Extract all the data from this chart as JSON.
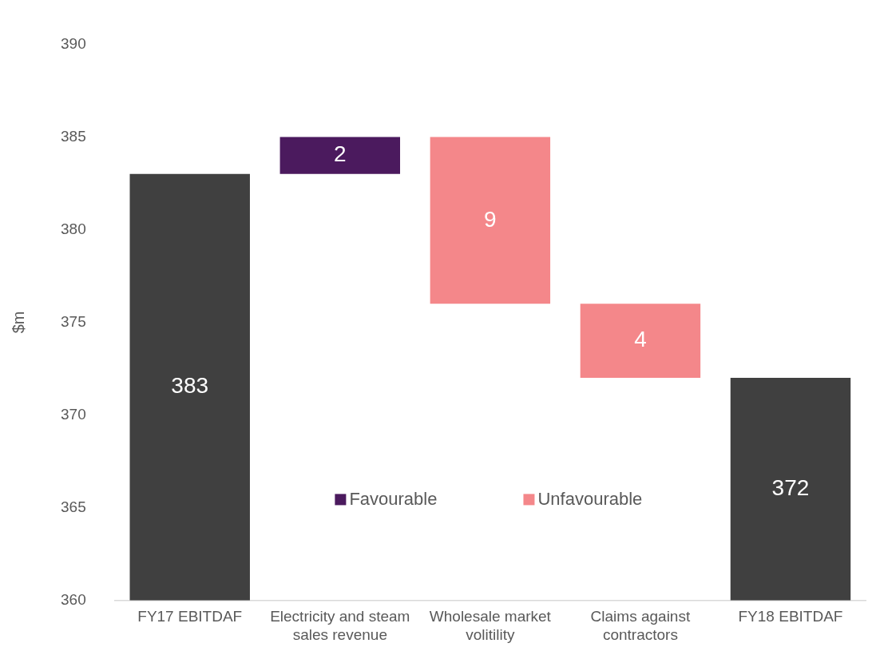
{
  "chart_data": {
    "type": "bar",
    "ylabel": "$m",
    "categories": [
      "FY17 EBITDAF",
      "Electricity and steam sales revenue",
      "Wholesale market volitility",
      "Claims against contractors",
      "FY18 EBITDAF"
    ],
    "series": [
      {
        "color": "#404040",
        "values": [
          383,
          null,
          null,
          null,
          372
        ],
        "value_labels": [
          "383",
          null,
          null,
          null,
          "372"
        ]
      },
      {
        "name": "Favourable",
        "color": "#4b1a5e",
        "values": [
          null,
          2,
          null,
          null,
          null
        ],
        "base": [
          null,
          383,
          null,
          null,
          null
        ],
        "value_labels": [
          null,
          "2",
          null,
          null,
          null
        ]
      },
      {
        "name": "Unfavourable",
        "color": "#f4878a",
        "values": [
          null,
          null,
          9,
          4,
          null
        ],
        "base": [
          null,
          null,
          376,
          372,
          null
        ],
        "value_labels": [
          null,
          null,
          "9",
          "4",
          null
        ]
      }
    ],
    "ylim": [
      360,
      390
    ],
    "yticks": [
      360,
      365,
      370,
      375,
      380,
      385,
      390
    ],
    "grid": false,
    "legend": "bottom"
  }
}
